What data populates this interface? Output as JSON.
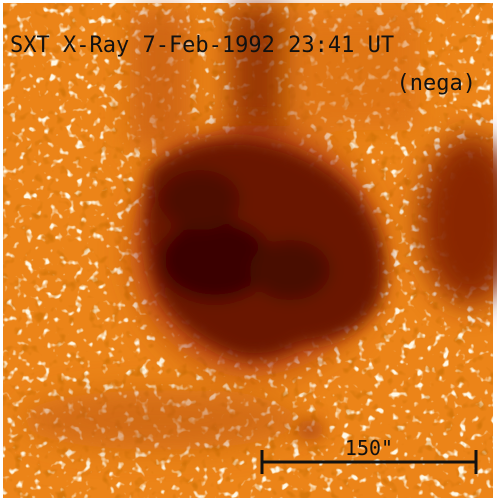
{
  "image": {
    "caption": "SXT X-Ray 7-Feb-1992 23:41 UT",
    "mode": "(nega)",
    "scale_bar": "150\""
  }
}
